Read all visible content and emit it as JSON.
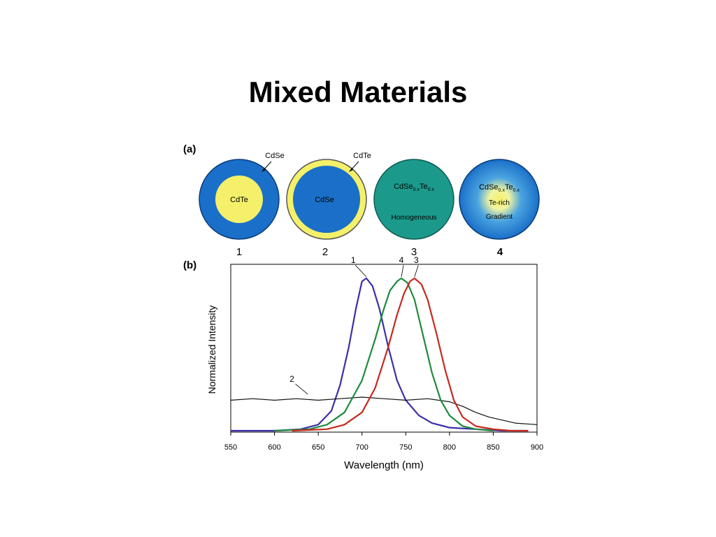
{
  "slide": {
    "title": "Mixed Materials"
  },
  "panel_a": {
    "label": "(a)",
    "particles": [
      {
        "number": "1",
        "core": "CdTe",
        "shell": "CdSe",
        "core_color": "#f4f06a",
        "shell_color": "#1a6fc8"
      },
      {
        "number": "2",
        "core": "CdSe",
        "shell": "CdTe",
        "core_color": "#1a6fc8",
        "shell_color": "#f4f06a"
      },
      {
        "number": "3",
        "formula_base": "CdSe",
        "formula_sub1": "0.x",
        "formula_mid": "Te",
        "formula_sub2": "0.x",
        "caption": "Homogeneous",
        "color": "#1b9a8c"
      },
      {
        "number": "4",
        "formula_base": "CdSe",
        "formula_sub1": "0.x",
        "formula_mid": "Te",
        "formula_sub2": "0.x",
        "line2": "Te-rich",
        "line3": "Gradient",
        "outer_color": "#1a6fc8",
        "inner_color": "#f4f06a"
      }
    ]
  },
  "chart_data": {
    "type": "line",
    "panel_label": "(b)",
    "xlabel": "Wavelength (nm)",
    "ylabel": "Normalized Intensity",
    "xlim": [
      550,
      900
    ],
    "ylim": [
      0,
      1
    ],
    "xticks": [
      "550",
      "600",
      "650",
      "700",
      "750",
      "800",
      "850",
      "900"
    ],
    "grid": false,
    "series": [
      {
        "name": "1",
        "color": "#3a2fa8",
        "x": [
          550,
          600,
          630,
          650,
          665,
          675,
          685,
          693,
          700,
          705,
          712,
          720,
          730,
          740,
          750,
          765,
          780,
          800,
          830,
          860,
          890
        ],
        "y": [
          0.0,
          0.0,
          0.01,
          0.04,
          0.13,
          0.3,
          0.55,
          0.8,
          0.98,
          1.0,
          0.95,
          0.8,
          0.55,
          0.33,
          0.2,
          0.1,
          0.05,
          0.02,
          0.01,
          0.0,
          0.0
        ]
      },
      {
        "name": "2",
        "color": "#111111",
        "x": [
          550,
          575,
          600,
          625,
          650,
          675,
          700,
          725,
          750,
          775,
          800,
          815,
          830,
          845,
          860,
          875,
          900
        ],
        "y": [
          0.2,
          0.21,
          0.2,
          0.21,
          0.2,
          0.21,
          0.22,
          0.21,
          0.2,
          0.21,
          0.19,
          0.16,
          0.12,
          0.09,
          0.07,
          0.05,
          0.04
        ]
      },
      {
        "name": "4",
        "color": "#1e8a3c",
        "x": [
          600,
          640,
          660,
          680,
          700,
          715,
          725,
          732,
          740,
          745,
          752,
          760,
          770,
          780,
          790,
          800,
          815,
          830,
          850
        ],
        "y": [
          0.0,
          0.01,
          0.04,
          0.12,
          0.33,
          0.6,
          0.8,
          0.92,
          0.98,
          1.0,
          0.97,
          0.86,
          0.62,
          0.38,
          0.2,
          0.1,
          0.03,
          0.01,
          0.0
        ]
      },
      {
        "name": "3",
        "color": "#c8281e",
        "x": [
          620,
          660,
          680,
          700,
          715,
          730,
          740,
          748,
          755,
          760,
          768,
          775,
          785,
          795,
          805,
          815,
          830,
          850,
          870,
          890
        ],
        "y": [
          0.0,
          0.01,
          0.04,
          0.12,
          0.28,
          0.55,
          0.76,
          0.9,
          0.98,
          1.0,
          0.96,
          0.86,
          0.64,
          0.4,
          0.2,
          0.09,
          0.03,
          0.01,
          0.0,
          0.0
        ]
      }
    ],
    "annotations": [
      {
        "text": "1",
        "x": 690,
        "y": 1.1
      },
      {
        "text": "4",
        "x": 745,
        "y": 1.1
      },
      {
        "text": "3",
        "x": 762,
        "y": 1.1
      },
      {
        "text": "2",
        "x": 620,
        "y": 0.32
      }
    ]
  }
}
